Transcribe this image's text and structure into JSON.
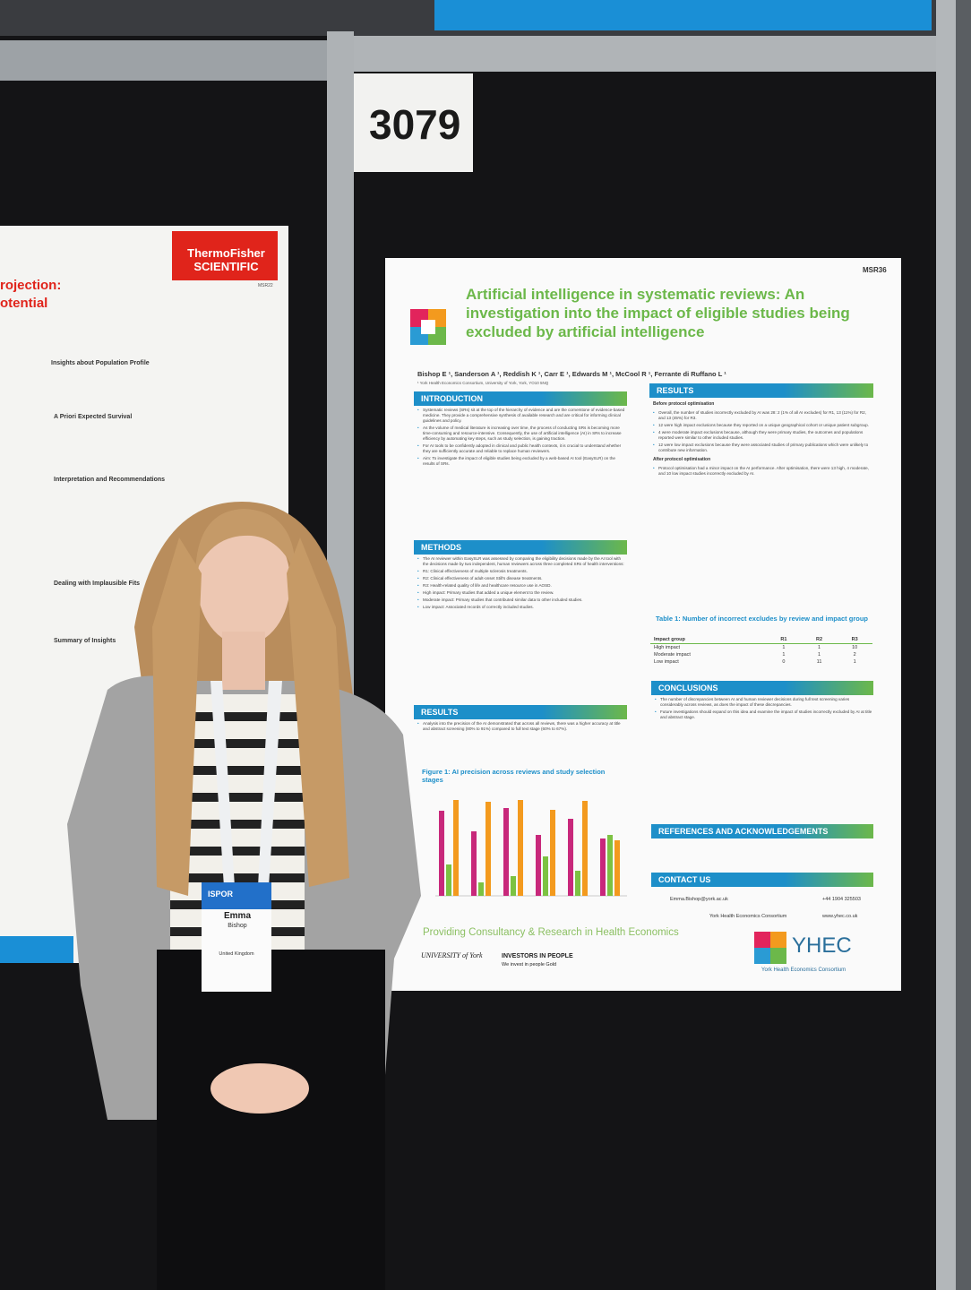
{
  "board_number": "3079",
  "left_poster": {
    "logo": "ThermoFisher SCIENTIFIC",
    "code": "MSR22",
    "title_fragments": [
      "rojection:",
      "otential"
    ],
    "headings": [
      "Insights about Population Profile",
      "A Priori Expected Survival",
      "Interpretation and Recommendations",
      "Dealing with Implausible Fits",
      "Summary of Insights"
    ]
  },
  "badge": {
    "event": "ISPOR",
    "first_name": "Emma",
    "last_name": "Bishop",
    "country": "United Kingdom"
  },
  "poster": {
    "code": "MSR36",
    "title": "Artificial intelligence in systematic reviews: An investigation into the impact of eligible studies being excluded by artificial intelligence",
    "authors": "Bishop E ¹, Sanderson A ¹, Reddish K ¹, Carr E ¹, Edwards M ¹, McCool R ¹, Ferrante di Ruffano L ¹",
    "affiliation": "¹ York Health Economics Consortium, University of York, York, YO10 5NQ",
    "left_sections": [
      {
        "heading": "INTRODUCTION",
        "bullets": [
          "Systematic reviews (SRs) sit at the top of the hierarchy of evidence and are the cornerstone of evidence-based medicine. They provide a comprehensive synthesis of available research and are critical for informing clinical guidelines and policy.",
          "As the volume of medical literature is increasing over time, the process of conducting SRs is becoming more time-consuming and resource-intensive. Consequently, the use of artificial intelligence (AI) in SRs to increase efficiency by automating key steps, such as study selection, is gaining traction.",
          "For AI tools to be confidently adopted in clinical and public health contexts, it is crucial to understand whether they are sufficiently accurate and reliable to replace human reviewers.",
          "Aim: To investigate the impact of eligible studies being excluded by a web-based AI tool (EasySLR) on the results of SRs."
        ]
      },
      {
        "heading": "METHODS",
        "bullets": [
          "The AI reviewer within EasySLR was assessed by comparing the eligibility decisions made by the AI tool with the decisions made by two independent, human reviewers across three completed SRs of health interventions:",
          "R1: Clinical effectiveness of multiple sclerosis treatments.",
          "R2: Clinical effectiveness of adult-onset Still's disease treatments.",
          "R3: Health-related quality of life and healthcare resource use in AOSD.",
          "High impact: Primary studies that added a unique element to the review.",
          "Moderate impact: Primary studies that contributed similar data to other included studies.",
          "Low impact: Associated records of correctly included studies."
        ]
      },
      {
        "heading": "RESULTS",
        "bullets": [
          "Analysis into the precision of the AI demonstrated that across all reviews, there was a higher accuracy at title and abstract screening (80% to 91%) compared to full text stage (60% to 67%)."
        ]
      }
    ],
    "figure_title": "Figure 1:  AI precision across reviews and study selection stages",
    "right_results": {
      "heading": "RESULTS",
      "subheadings": [
        "Before protocol optimisation",
        "After protocol optimisation"
      ],
      "bullets": [
        "Overall, the number of studies incorrectly excluded by AI was 28: 2 (1% of all AI excludes) for R1, 13 (11%) for R2, and 13 (45%) for R3.",
        "12 were high impact exclusions because they reported on a unique geographical cohort or unique patient subgroup.",
        "4 were moderate impact exclusions because, although they were primary studies, the outcomes and populations reported were similar to other included studies.",
        "12 were low impact exclusions because they were associated studies of primary publications which were unlikely to contribute new information.",
        "Protocol optimisation had a minor impact on the AI performance. After optimisation, there were 13 high, 4 moderate, and 10 low impact studies incorrectly excluded by AI."
      ]
    },
    "table": {
      "title": "Table 1:    Number of incorrect excludes by review and impact group",
      "header": [
        "Impact group",
        "R1",
        "R2",
        "R3"
      ],
      "rows": [
        [
          "High impact",
          1,
          1,
          10
        ],
        [
          "Moderate impact",
          1,
          1,
          2
        ],
        [
          "Low impact",
          0,
          11,
          1
        ]
      ]
    },
    "conclusions": {
      "heading": "CONCLUSIONS",
      "bullets": [
        "The number of discrepancies between AI and human reviewer decisions during full text screening varies considerably across reviews, as does the impact of these discrepancies.",
        "Future investigations should expand on this idea and examine the impact of studies incorrectly excluded by AI at title and abstract stage."
      ]
    },
    "references_heading": "REFERENCES AND ACKNOWLEDGEMENTS",
    "contact": {
      "heading": "CONTACT US",
      "email": "Emma.Bishop@york.ac.uk",
      "phone": "+44 1904 325503",
      "org": "York Health Economics Consortium",
      "web": "www.yhec.co.uk"
    },
    "tagline": "Providing Consultancy & Research in Health Economics",
    "footer": {
      "university": "UNIVERSITY of York",
      "iip": "INVESTORS IN PEOPLE",
      "iip_sub": "We invest in people Gold",
      "yhec": "YHEC",
      "yhec_sub": "York Health Economics Consortium"
    }
  }
}
